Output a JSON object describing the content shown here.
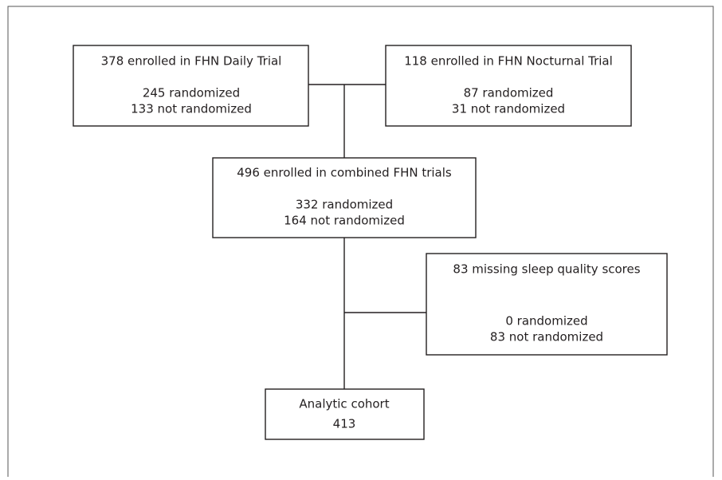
{
  "nodes": [
    {
      "lines": [
        "378 enrolled in FHN Daily Trial",
        "245 randomized",
        "133 not randomized"
      ]
    },
    {
      "lines": [
        "118 enrolled in FHN Nocturnal Trial",
        "87 randomized",
        "31 not randomized"
      ]
    },
    {
      "lines": [
        "496 enrolled in combined FHN trials",
        "332 randomized",
        "164 not randomized"
      ]
    },
    {
      "lines": [
        "83  missing sleep quality scores",
        "0 randomized",
        "83 not randomized"
      ]
    },
    {
      "lines": [
        "Analytic cohort",
        "413"
      ]
    }
  ]
}
